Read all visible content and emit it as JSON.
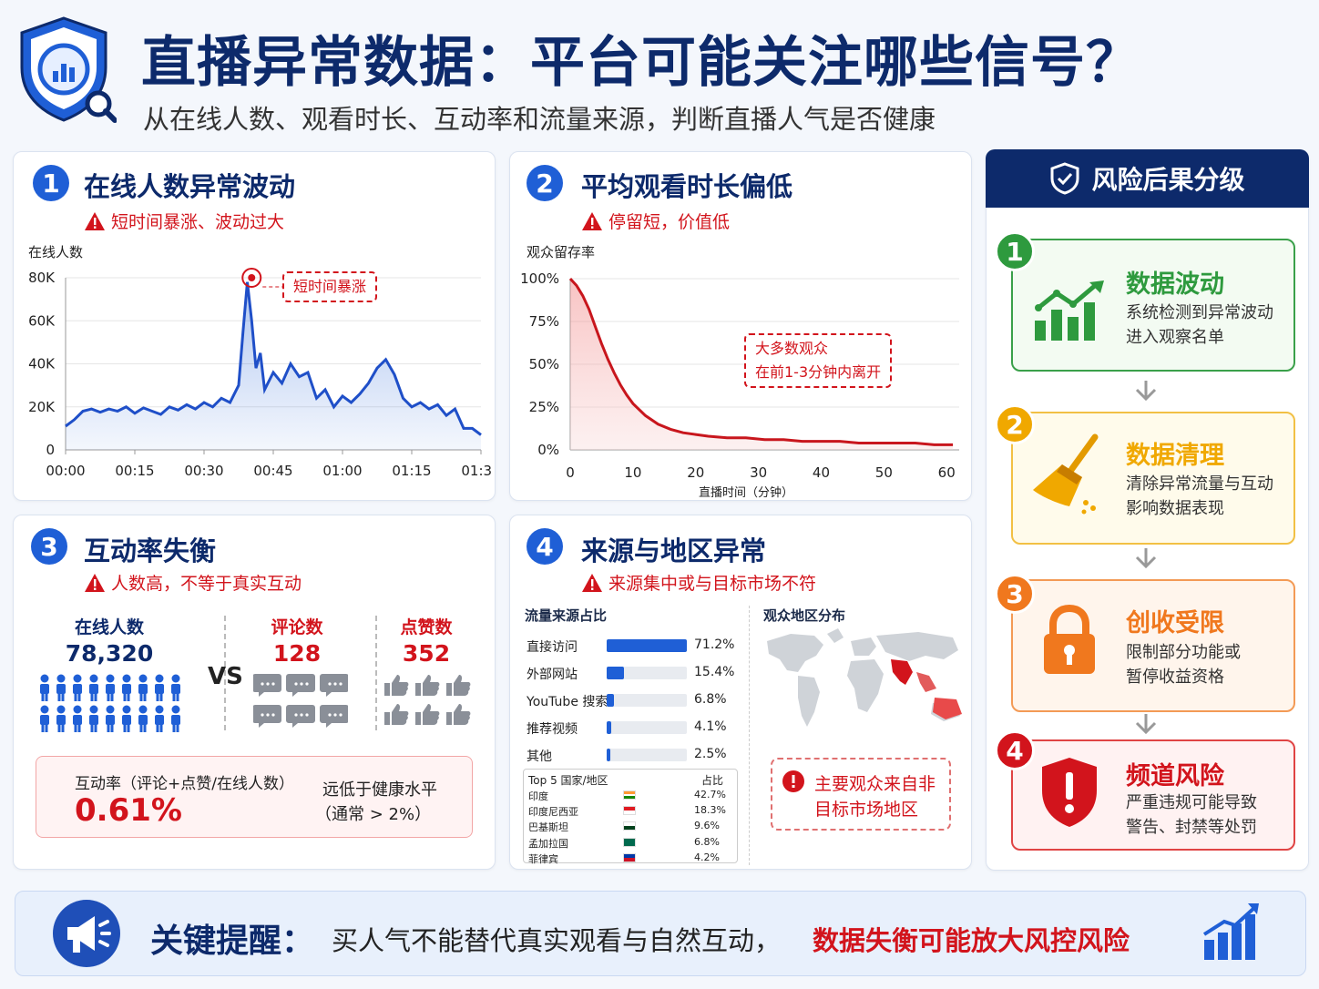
{
  "header": {
    "title": "直播异常数据：平台可能关注哪些信号？",
    "subtitle": "从在线人数、观看时长、互动率和流量来源，判断直播人气是否健康"
  },
  "colors": {
    "navy": "#0d2a6b",
    "blue": "#1f5fd6",
    "red": "#d2141c",
    "green": "#2e9a3e",
    "yellow": "#f0a800",
    "orange": "#f0781e"
  },
  "card1": {
    "num": "1",
    "title": "在线人数异常波动",
    "warning": "短时间暴涨、波动过大",
    "ylabel": "在线人数",
    "annotation": "短时间暴涨"
  },
  "card2": {
    "num": "2",
    "title": "平均观看时长偏低",
    "warning": "停留短，价值低",
    "ylabel": "观众留存率",
    "xlabel": "直播时间（分钟）",
    "annotation_line1": "大多数观众",
    "annotation_line2": "在前1-3分钟内离开"
  },
  "card3": {
    "num": "3",
    "title": "互动率失衡",
    "warning": "人数高，不等于真实互动",
    "online_label": "在线人数",
    "online_value": "78,320",
    "vs": "VS",
    "comments_label": "评论数",
    "comments_value": "128",
    "likes_label": "点赞数",
    "likes_value": "352",
    "rate_label": "互动率（评论+点赞/在线人数）",
    "rate_value": "0.61%",
    "note_line1": "远低于健康水平",
    "note_line2": "（通常 > 2%）"
  },
  "card4": {
    "num": "4",
    "title": "来源与地区异常",
    "warning": "来源集中或与目标市场不符",
    "source_title": "流量来源占比",
    "map_title": "观众地区分布",
    "top5_header": "Top 5 国家/地区",
    "top5_share_header": "占比",
    "map_alert_line1": "主要观众来自非",
    "map_alert_line2": "目标市场地区"
  },
  "risk": {
    "title": "风险后果分级",
    "items": [
      {
        "num": "1",
        "title": "数据波动",
        "line1": "系统检测到异常波动",
        "line2": "进入观察名单"
      },
      {
        "num": "2",
        "title": "数据清理",
        "line1": "清除异常流量与互动",
        "line2": "影响数据表现"
      },
      {
        "num": "3",
        "title": "创收受限",
        "line1": "限制部分功能或",
        "line2": "暂停收益资格"
      },
      {
        "num": "4",
        "title": "频道风险",
        "line1": "严重违规可能导致",
        "line2": "警告、封禁等处罚"
      }
    ]
  },
  "bottom": {
    "label": "关键提醒：",
    "text": "买人气不能替代真实观看与自然互动，",
    "highlight": "数据失衡可能放大风控风险"
  },
  "chart_data": [
    {
      "type": "area",
      "ylabel": "在线人数",
      "ylim": [
        0,
        80000
      ],
      "yticks": [
        "0",
        "20K",
        "40K",
        "60K",
        "80K"
      ],
      "yticks_values": [
        0,
        20000,
        40000,
        60000,
        80000
      ],
      "xticks": [
        "00:00",
        "00:15",
        "00:30",
        "00:45",
        "01:00",
        "01:15",
        "01:30"
      ],
      "xlim": [
        0,
        96
      ],
      "x": [
        0,
        2,
        4,
        6,
        8,
        10,
        12,
        14,
        16,
        18,
        20,
        22,
        24,
        26,
        28,
        30,
        32,
        34,
        36,
        38,
        40,
        41,
        42,
        43,
        44,
        45,
        46,
        48,
        50,
        52,
        54,
        56,
        58,
        60,
        62,
        64,
        66,
        68,
        70,
        72,
        74,
        76,
        78,
        80,
        82,
        84,
        86,
        88,
        90,
        92,
        94,
        96
      ],
      "y": [
        11000,
        14000,
        18000,
        19000,
        17500,
        19000,
        18000,
        20000,
        17000,
        19500,
        18000,
        16500,
        20000,
        18500,
        21000,
        19000,
        22000,
        20000,
        24000,
        22000,
        30000,
        55000,
        78000,
        60000,
        38000,
        45000,
        28000,
        36000,
        31000,
        40000,
        34000,
        36000,
        24000,
        28000,
        20000,
        25000,
        22000,
        26000,
        31000,
        38000,
        42000,
        35000,
        24000,
        20000,
        22000,
        19000,
        21000,
        16000,
        19000,
        10000,
        10000,
        7000
      ],
      "peak": {
        "x": 43,
        "y": 80000
      }
    },
    {
      "type": "area",
      "ylabel": "观众留存率",
      "xlabel": "直播时间（分钟）",
      "ylim": [
        0,
        100
      ],
      "yticks": [
        "0%",
        "25%",
        "50%",
        "75%",
        "100%"
      ],
      "yticks_values": [
        0,
        25,
        50,
        75,
        100
      ],
      "xticks": [
        "0",
        "10",
        "20",
        "30",
        "40",
        "50",
        "60"
      ],
      "xticks_values": [
        0,
        10,
        20,
        30,
        40,
        50,
        60
      ],
      "x": [
        0,
        1,
        2,
        3,
        4,
        5,
        6,
        7,
        8,
        9,
        10,
        12,
        14,
        16,
        18,
        20,
        22,
        25,
        28,
        31,
        34,
        37,
        40,
        43,
        46,
        49,
        52,
        55,
        58,
        61
      ],
      "y": [
        100,
        96,
        90,
        82,
        72,
        62,
        53,
        45,
        38,
        32,
        27,
        20,
        15,
        12,
        10,
        9,
        8,
        7,
        7,
        6,
        6,
        5,
        5,
        5,
        4,
        4,
        4,
        4,
        3,
        3
      ]
    },
    {
      "type": "bar",
      "title": "流量来源占比",
      "categories": [
        "直接访问",
        "外部网站",
        "YouTube 搜索",
        "推荐视频",
        "其他"
      ],
      "values": [
        71.2,
        15.4,
        6.8,
        4.1,
        2.5
      ],
      "labels": [
        "71.2%",
        "15.4%",
        "6.8%",
        "4.1%",
        "2.5%"
      ]
    },
    {
      "type": "table",
      "title": "Top 5 国家/地区",
      "columns": [
        "Top 5 国家/地区",
        "占比"
      ],
      "rows": [
        {
          "name": "印度",
          "share": "42.7%",
          "flag": "india"
        },
        {
          "name": "印度尼西亚",
          "share": "18.3%",
          "flag": "indonesia"
        },
        {
          "name": "巴基斯坦",
          "share": "9.6%",
          "flag": "pakistan"
        },
        {
          "name": "孟加拉国",
          "share": "6.8%",
          "flag": "bangladesh"
        },
        {
          "name": "菲律宾",
          "share": "4.2%",
          "flag": "philippines"
        }
      ]
    }
  ]
}
